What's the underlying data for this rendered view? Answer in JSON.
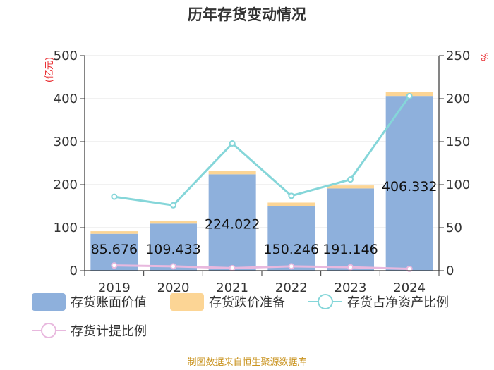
{
  "chart_data": {
    "type": "bar",
    "title": "历年存货变动情况",
    "categories": [
      "2019",
      "2020",
      "2021",
      "2022",
      "2023",
      "2024"
    ],
    "series": [
      {
        "name": "存货账面价值",
        "kind": "bar",
        "axis": "left",
        "color": "#8eb0dc",
        "values": [
          85.676,
          109.433,
          224.022,
          150.246,
          191.146,
          406.332
        ]
      },
      {
        "name": "存货跌价准备",
        "kind": "bar-stacked",
        "axis": "left",
        "color": "#fcd595",
        "values": [
          6,
          7,
          8,
          8,
          7,
          10
        ]
      },
      {
        "name": "存货占净资产比例",
        "kind": "line",
        "axis": "right",
        "color": "#85d6d9",
        "values": [
          86,
          76,
          148,
          87,
          106,
          203
        ]
      },
      {
        "name": "存货计提比例",
        "kind": "line",
        "axis": "right",
        "color": "#e8b8de",
        "values": [
          6,
          5,
          3,
          5,
          4,
          2
        ]
      }
    ],
    "data_labels": [
      "85.676",
      "109.433",
      "224.022",
      "150.246",
      "191.146",
      "406.332"
    ],
    "y_left": {
      "label": "(亿元)",
      "min": 0,
      "max": 500,
      "ticks": [
        "0",
        "100",
        "200",
        "300",
        "400",
        "500"
      ]
    },
    "y_right": {
      "label": "%",
      "min": 0,
      "max": 250,
      "ticks": [
        "0",
        "50",
        "100",
        "150",
        "200",
        "250"
      ]
    },
    "grid": true,
    "legend_position": "bottom",
    "source": "制图数据来自恒生聚源数据库"
  }
}
